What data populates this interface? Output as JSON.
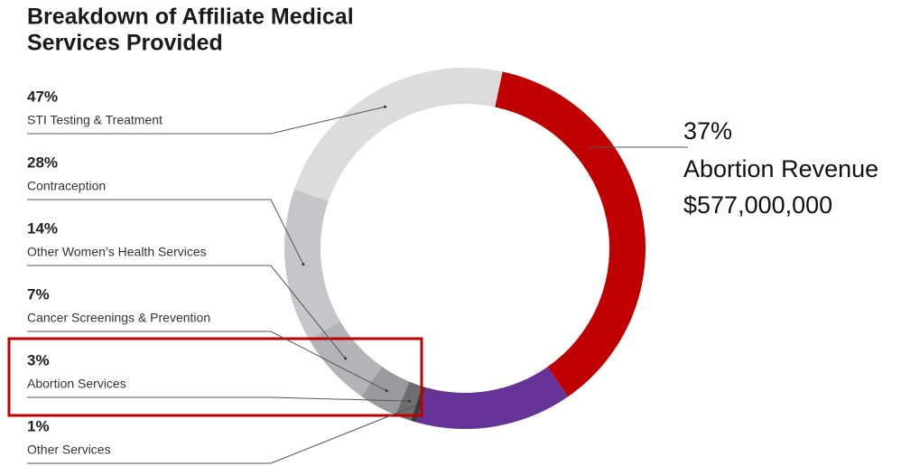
{
  "chart_data": {
    "type": "donut",
    "title": [
      "Breakdown of Affiliate Medical",
      "Services Provided"
    ],
    "highlight": {
      "value": 37,
      "value_label": "37%",
      "label": "Abortion Revenue",
      "amount": "$577,000,000",
      "color": "#c00000"
    },
    "other": {
      "value": 14,
      "color": "#663399"
    },
    "services": [
      {
        "value": 47,
        "value_label": "47%",
        "label": "STI Testing & Treatment",
        "color": "#dcdcdd"
      },
      {
        "value": 28,
        "value_label": "28%",
        "label": "Contraception",
        "color": "#c6c6c8"
      },
      {
        "value": 14,
        "value_label": "14%",
        "label": "Other Women’s Health Services",
        "color": "#b4b4b6"
      },
      {
        "value": 7,
        "value_label": "7%",
        "label": "Cancer Screenings & Prevention",
        "color": "#9a9a9c"
      },
      {
        "value": 3,
        "value_label": "3%",
        "label": "Abortion Services",
        "color": "#6e6e70"
      },
      {
        "value": 1,
        "value_label": "1%",
        "label": "Other Services",
        "color": "#3c3c3e"
      }
    ]
  }
}
